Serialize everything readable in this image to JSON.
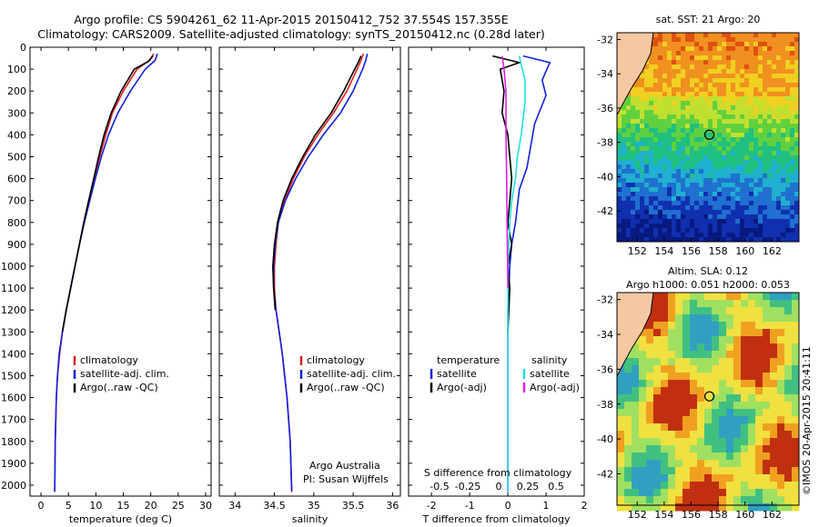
{
  "title": {
    "line1": "Argo profile: CS 5904261_62 11-Apr-2015 20150412_752 37.554S 157.355E",
    "line2": "Climatology: CARS2009. Satellite-adjusted climatology: synTS_20150412.nc (0.28d later)"
  },
  "colors": {
    "climatology": "#e02020",
    "satellite": "#1020e0",
    "argo": "#000000",
    "salinity_sat": "#20e0e0",
    "salinity_argo": "#e020e0"
  },
  "chart_data": [
    {
      "type": "line",
      "name": "temperature",
      "xlabel": "temperature (deg C)",
      "ylabel": "",
      "xlim": [
        -2,
        31
      ],
      "ylim": [
        2050,
        0
      ],
      "xticks": [
        0,
        5,
        10,
        15,
        20,
        25,
        30
      ],
      "yticks": [
        0,
        100,
        200,
        300,
        400,
        500,
        600,
        700,
        800,
        900,
        1000,
        1100,
        1200,
        1300,
        1400,
        1500,
        1600,
        1700,
        1800,
        1900,
        2000
      ],
      "legend": [
        "climatology",
        "satellite-adj. clim.",
        "Argo(..raw -QC)"
      ],
      "series": [
        {
          "name": "climatology",
          "color": "#e02020",
          "x": [
            20.5,
            19.8,
            17.5,
            15.0,
            13.0,
            11.8,
            10.7,
            9.7,
            8.7,
            7.8,
            7.0,
            6.2,
            5.4,
            4.6,
            3.9,
            3.4,
            3.0,
            2.8,
            2.6,
            2.5
          ],
          "y": [
            30,
            60,
            100,
            200,
            300,
            400,
            500,
            600,
            700,
            800,
            900,
            1000,
            1100,
            1200,
            1300,
            1400,
            1500,
            1600,
            1800,
            2030
          ]
        },
        {
          "name": "satellite-adj. clim.",
          "color": "#1020e0",
          "x": [
            21.2,
            20.8,
            19.0,
            16.3,
            14.0,
            12.3,
            11.0,
            9.9,
            8.9,
            7.9,
            7.0,
            6.2,
            5.4,
            4.6,
            3.9,
            3.3,
            3.0,
            2.8,
            2.6,
            2.5
          ],
          "y": [
            30,
            60,
            100,
            200,
            300,
            400,
            500,
            600,
            700,
            800,
            900,
            1000,
            1100,
            1200,
            1300,
            1400,
            1500,
            1600,
            1800,
            2030
          ]
        },
        {
          "name": "Argo(..raw -QC)",
          "color": "#000000",
          "x": [
            20.4,
            19.5,
            17.0,
            14.6,
            12.8,
            11.5,
            10.5,
            9.6,
            8.7,
            7.8,
            7.0,
            6.2,
            5.4,
            4.6,
            3.9
          ],
          "y": [
            40,
            65,
            100,
            200,
            300,
            400,
            500,
            600,
            700,
            800,
            900,
            1000,
            1100,
            1200,
            1300
          ]
        }
      ]
    },
    {
      "type": "line",
      "name": "salinity",
      "xlabel": "salinity",
      "ylabel": "",
      "xlim": [
        33.8,
        36.1
      ],
      "ylim": [
        2050,
        0
      ],
      "xticks": [
        34,
        34.5,
        35,
        35.5,
        36
      ],
      "legend": [
        "climatology",
        "satellite-adj. clim.",
        "Argo(..raw -QC)"
      ],
      "annotation": [
        "Argo Australia",
        "PI: Susan Wijffels"
      ],
      "series": [
        {
          "name": "climatology",
          "color": "#e02020",
          "x": [
            35.63,
            35.6,
            35.55,
            35.42,
            35.25,
            35.05,
            34.88,
            34.74,
            34.63,
            34.55,
            34.52,
            34.5,
            34.5,
            34.52,
            34.56,
            34.6,
            34.63,
            34.66,
            34.7,
            34.72
          ],
          "y": [
            30,
            60,
            100,
            200,
            300,
            400,
            500,
            600,
            700,
            800,
            900,
            1000,
            1100,
            1200,
            1300,
            1400,
            1500,
            1600,
            1800,
            2030
          ]
        },
        {
          "name": "satellite-adj. clim.",
          "color": "#1020e0",
          "x": [
            35.68,
            35.66,
            35.62,
            35.5,
            35.34,
            35.12,
            34.93,
            34.77,
            34.64,
            34.55,
            34.51,
            34.49,
            34.49,
            34.52,
            34.56,
            34.6,
            34.63,
            34.66,
            34.7,
            34.72
          ],
          "y": [
            30,
            60,
            100,
            200,
            300,
            400,
            500,
            600,
            700,
            800,
            900,
            1000,
            1100,
            1200,
            1300,
            1400,
            1500,
            1600,
            1800,
            2030
          ]
        },
        {
          "name": "Argo(..raw -QC)",
          "color": "#000000",
          "x": [
            35.6,
            35.57,
            35.52,
            35.38,
            35.22,
            35.02,
            34.86,
            34.72,
            34.61,
            34.54,
            34.5,
            34.48,
            34.49,
            34.51
          ],
          "y": [
            40,
            65,
            100,
            200,
            300,
            400,
            500,
            600,
            700,
            800,
            900,
            1000,
            1100,
            1200
          ]
        }
      ]
    },
    {
      "type": "line",
      "name": "differences",
      "xlabel": "T difference from climatology",
      "xlabel_top": "S difference from climatology",
      "xlim": [
        -2.6,
        2.0
      ],
      "ylim": [
        2050,
        0
      ],
      "xticks": [
        -2,
        -1,
        0,
        1,
        2
      ],
      "xticks_S": [
        "-0.5",
        "-0.25",
        "0",
        "0.25",
        "0.5"
      ],
      "legend_temperature": {
        "title": "temperature",
        "items": [
          "satellite",
          "Argo(-adj)"
        ]
      },
      "legend_salinity": {
        "title": "salinity",
        "items": [
          "satellite",
          "Argo(-adj)"
        ]
      },
      "series": [
        {
          "name": "temperature satellite",
          "color": "#1020e0",
          "x": [
            0.4,
            1.1,
            0.9,
            1.0,
            0.7,
            0.6,
            0.5,
            0.3,
            0.2,
            0.1,
            0.05,
            0.0,
            0.0,
            0.0
          ],
          "y": [
            40,
            70,
            150,
            220,
            350,
            450,
            550,
            650,
            800,
            900,
            1000,
            1200,
            1500,
            2030
          ]
        },
        {
          "name": "temperature Argo(-adj)",
          "color": "#000000",
          "x": [
            -0.4,
            0.3,
            -0.2,
            -0.1,
            -0.15,
            0.0,
            0.05,
            0.1,
            0.05,
            0.0,
            0.1,
            0.0,
            0.05,
            0.0
          ],
          "y": [
            40,
            70,
            100,
            200,
            300,
            400,
            500,
            600,
            700,
            800,
            900,
            1000,
            1100,
            1300
          ]
        },
        {
          "name": "salinity satellite",
          "color": "#20e0e0",
          "x": [
            0.3,
            0.35,
            0.45,
            0.45,
            0.35,
            0.25,
            0.2,
            0.1,
            0.05,
            0.0,
            0.0
          ],
          "y": [
            40,
            80,
            150,
            250,
            400,
            500,
            600,
            700,
            800,
            1000,
            2030
          ]
        },
        {
          "name": "salinity Argo(-adj)",
          "color": "#e020e0",
          "x": [
            -0.15,
            -0.1,
            -0.05,
            -0.05,
            -0.03,
            -0.02,
            0.0
          ],
          "y": [
            40,
            100,
            200,
            400,
            600,
            800,
            1100
          ]
        }
      ]
    },
    {
      "type": "heatmap",
      "name": "sst-map",
      "title": "sat. SST: 21 Argo: 20",
      "xticks": [
        152,
        154,
        156,
        158,
        160,
        162
      ],
      "yticks": [
        -32,
        -34,
        -36,
        -38,
        -40,
        -42
      ],
      "marker": {
        "lon": 157.355,
        "lat": -37.554
      }
    },
    {
      "type": "heatmap",
      "name": "sla-map",
      "title_line1": "Altim. SLA: 0.12",
      "title_line2": "Argo h1000: 0.051 h2000: 0.053",
      "xticks": [
        152,
        154,
        156,
        158,
        160,
        162
      ],
      "yticks": [
        -32,
        -34,
        -36,
        -38,
        -40,
        -42
      ],
      "marker": {
        "lon": 157.355,
        "lat": -37.554
      }
    }
  ],
  "stamp": "©IMOS 20-Apr-2015 20:41:11"
}
